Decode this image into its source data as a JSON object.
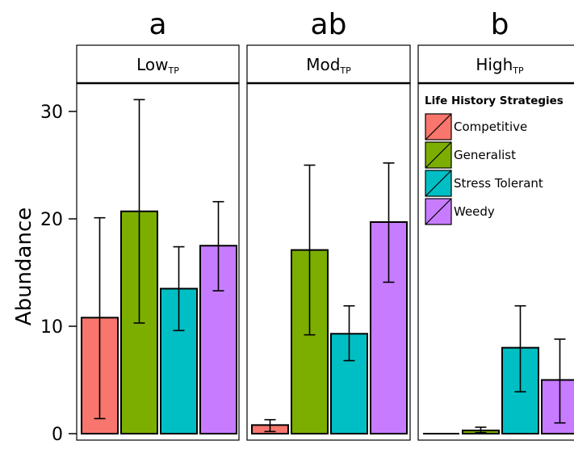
{
  "chart_data": {
    "type": "bar",
    "ylabel": "Abundance",
    "ylim": [
      0,
      32.5
    ],
    "yticks": [
      0,
      10,
      20,
      30
    ],
    "grid": false,
    "facets": [
      {
        "letter": "a",
        "strip_main": "Low",
        "strip_sub": "TP"
      },
      {
        "letter": "ab",
        "strip_main": "Mod",
        "strip_sub": "TP"
      },
      {
        "letter": "b",
        "strip_main": "High",
        "strip_sub": "TP"
      }
    ],
    "categories": [
      "Competitive",
      "Generalist",
      "Stress Tolerant",
      "Weedy"
    ],
    "colors": [
      "#f8766d",
      "#7cae00",
      "#00bfc4",
      "#c77cff"
    ],
    "series": [
      {
        "facet": "Low",
        "values": [
          10.8,
          20.7,
          13.5,
          17.5
        ],
        "err_low": [
          1.4,
          10.3,
          9.6,
          13.3
        ],
        "err_high": [
          20.1,
          31.1,
          17.4,
          21.6
        ]
      },
      {
        "facet": "Mod",
        "values": [
          0.8,
          17.1,
          9.3,
          19.7
        ],
        "err_low": [
          0.2,
          9.2,
          6.8,
          14.1
        ],
        "err_high": [
          1.3,
          25.0,
          11.9,
          25.2
        ]
      },
      {
        "facet": "High",
        "values": [
          0.0,
          0.3,
          8.0,
          5.0
        ],
        "err_low": [
          0.0,
          0.1,
          3.9,
          1.0
        ],
        "err_high": [
          0.0,
          0.6,
          11.9,
          8.8
        ]
      }
    ],
    "legend": {
      "title": "Life History Strategies",
      "placement": "top-right",
      "entries": [
        "Competitive",
        "Generalist",
        "Stress Tolerant",
        "Weedy"
      ]
    }
  }
}
